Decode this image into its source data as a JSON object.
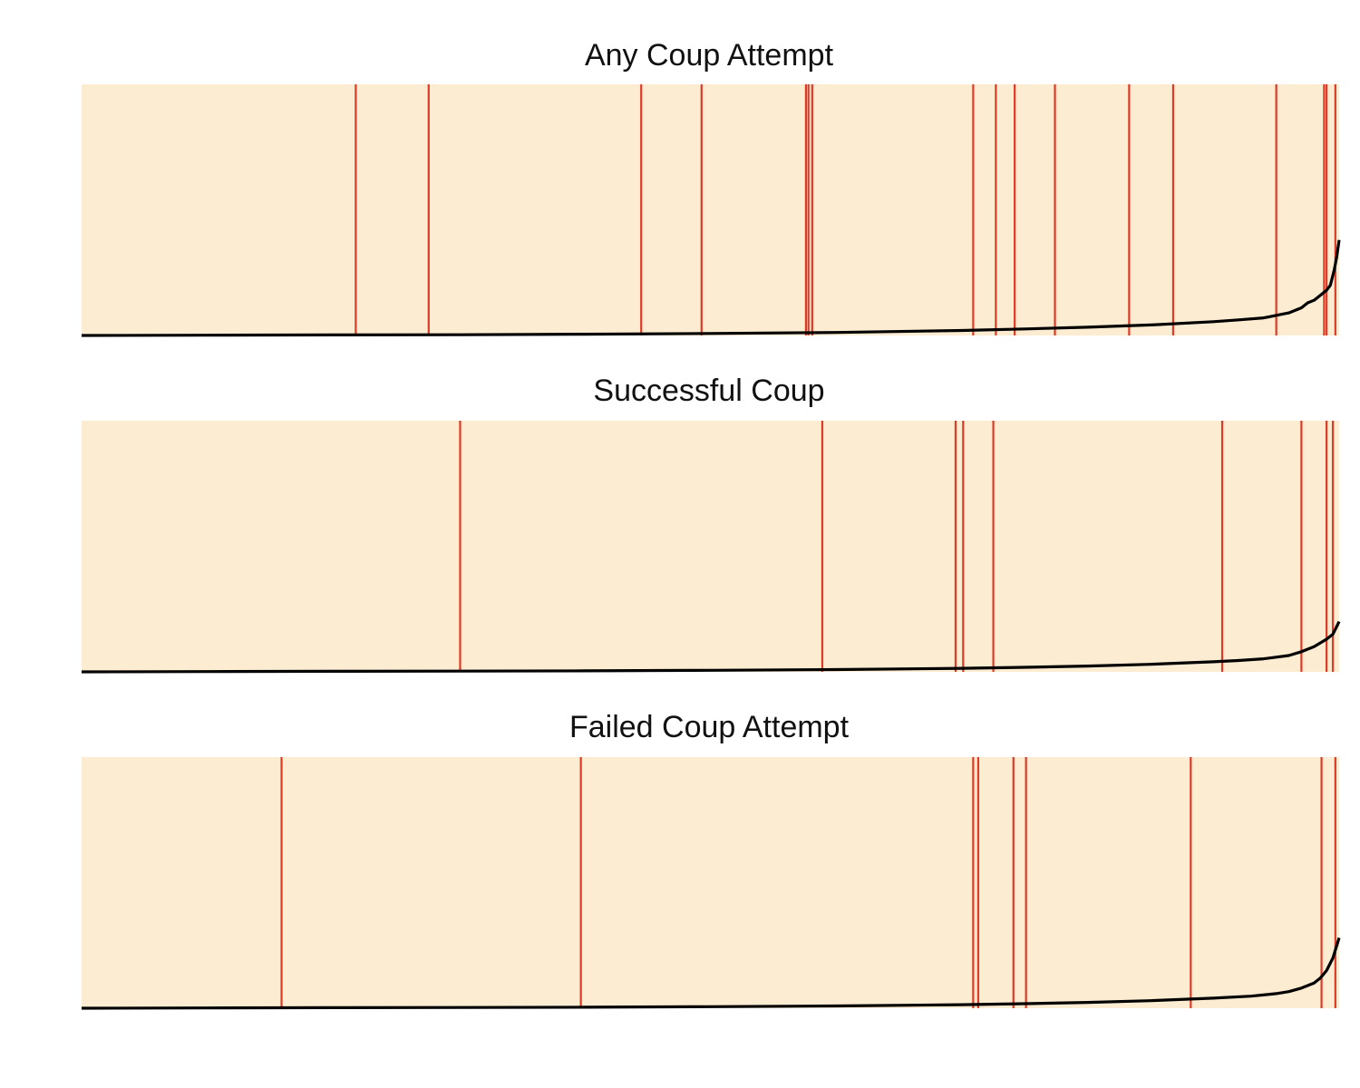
{
  "chart_data": [
    {
      "type": "line",
      "title": "Any Coup Attempt",
      "xlim": [
        0,
        1
      ],
      "ylim": [
        0,
        1
      ],
      "grid": false,
      "colors": {
        "background": "#fcecd2",
        "event": "#de3a26",
        "curve": "#000000"
      },
      "events": [
        0.218,
        0.276,
        0.445,
        0.493,
        0.576,
        0.578,
        0.581,
        0.709,
        0.727,
        0.742,
        0.774,
        0.833,
        0.868,
        0.95,
        0.988,
        0.99,
        0.997
      ],
      "curve": {
        "x": [
          0,
          0.1,
          0.2,
          0.3,
          0.4,
          0.5,
          0.6,
          0.7,
          0.75,
          0.8,
          0.85,
          0.9,
          0.92,
          0.94,
          0.95,
          0.96,
          0.97,
          0.975,
          0.98,
          0.985,
          0.99,
          0.993,
          0.996,
          0.998,
          1.0
        ],
        "y": [
          0,
          0.001,
          0.002,
          0.003,
          0.005,
          0.008,
          0.012,
          0.02,
          0.026,
          0.033,
          0.042,
          0.055,
          0.062,
          0.07,
          0.08,
          0.09,
          0.11,
          0.13,
          0.14,
          0.16,
          0.18,
          0.2,
          0.26,
          0.31,
          0.38
        ]
      }
    },
    {
      "type": "line",
      "title": "Successful Coup",
      "xlim": [
        0,
        1
      ],
      "ylim": [
        0,
        1
      ],
      "grid": false,
      "colors": {
        "background": "#fcecd2",
        "event": "#de3a26",
        "curve": "#000000"
      },
      "events": [
        0.301,
        0.589,
        0.695,
        0.701,
        0.725,
        0.907,
        0.97,
        0.99,
        0.995
      ],
      "curve": {
        "x": [
          0,
          0.1,
          0.2,
          0.3,
          0.4,
          0.5,
          0.6,
          0.7,
          0.75,
          0.8,
          0.85,
          0.9,
          0.92,
          0.94,
          0.96,
          0.97,
          0.98,
          0.99,
          0.995,
          1.0
        ],
        "y": [
          0,
          0.001,
          0.002,
          0.003,
          0.004,
          0.006,
          0.009,
          0.014,
          0.018,
          0.023,
          0.03,
          0.04,
          0.045,
          0.052,
          0.065,
          0.08,
          0.1,
          0.13,
          0.15,
          0.2
        ]
      }
    },
    {
      "type": "line",
      "title": "Failed Coup Attempt",
      "xlim": [
        0,
        1
      ],
      "ylim": [
        0,
        1
      ],
      "grid": false,
      "colors": {
        "background": "#fcecd2",
        "event": "#de3a26",
        "curve": "#000000"
      },
      "events": [
        0.159,
        0.397,
        0.709,
        0.713,
        0.741,
        0.751,
        0.882,
        0.986,
        0.997
      ],
      "curve": {
        "x": [
          0,
          0.1,
          0.2,
          0.3,
          0.4,
          0.5,
          0.6,
          0.7,
          0.75,
          0.8,
          0.85,
          0.9,
          0.93,
          0.95,
          0.96,
          0.97,
          0.98,
          0.985,
          0.99,
          0.995,
          1.0
        ],
        "y": [
          0,
          0.001,
          0.002,
          0.003,
          0.004,
          0.006,
          0.009,
          0.014,
          0.018,
          0.023,
          0.03,
          0.04,
          0.048,
          0.058,
          0.066,
          0.08,
          0.1,
          0.12,
          0.15,
          0.2,
          0.28
        ]
      }
    }
  ]
}
